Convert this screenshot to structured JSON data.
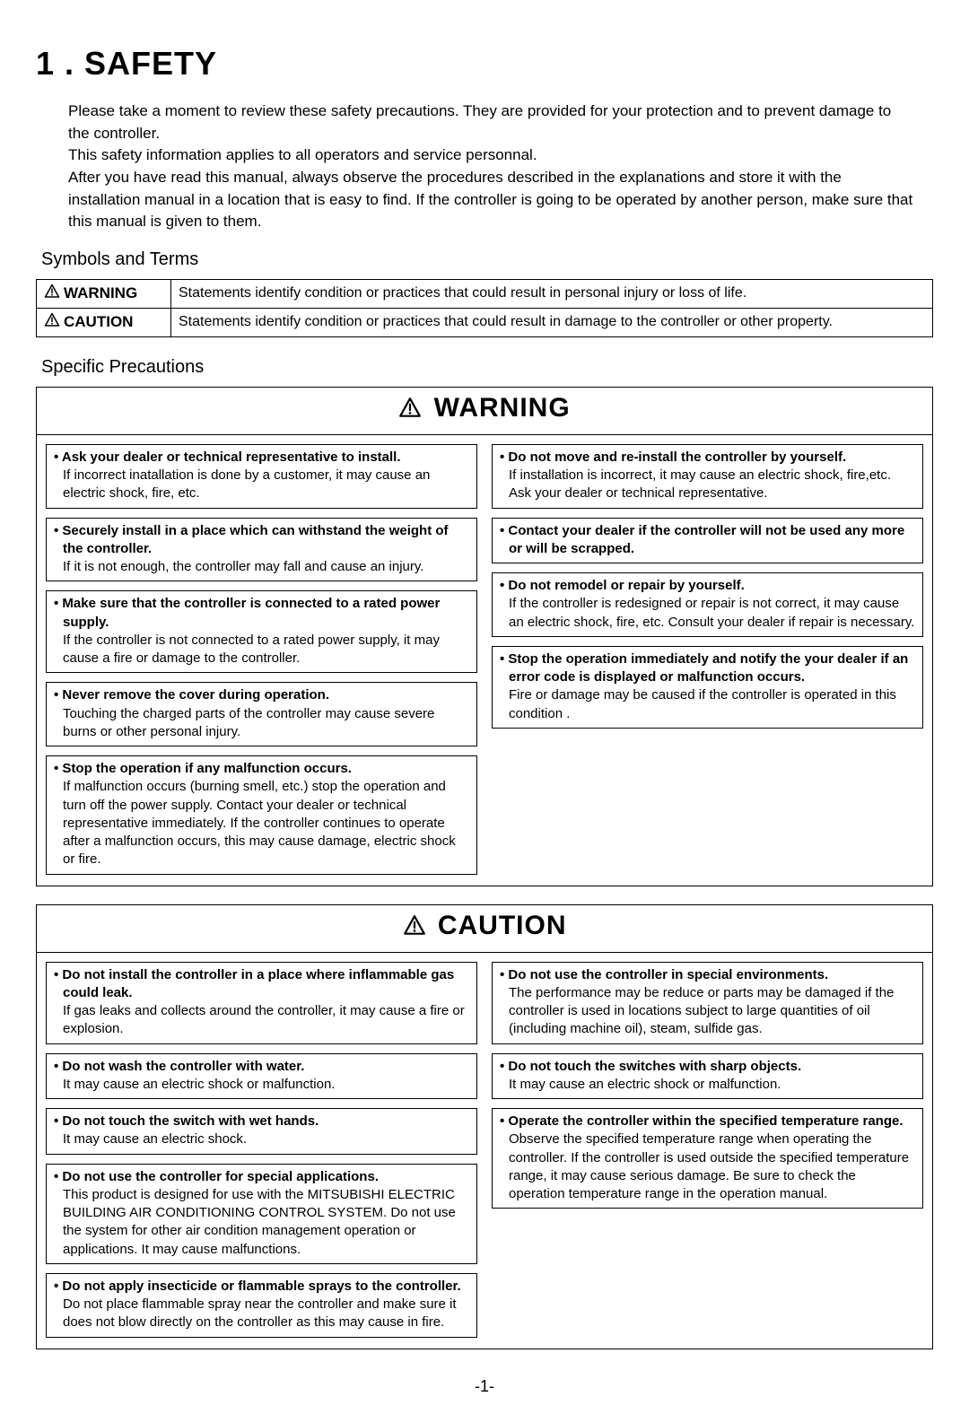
{
  "chapter": {
    "number": "1",
    "title": "SAFETY"
  },
  "intro_paragraphs": [
    "Please take a moment to review these safety precautions. They are provided for your protection and to prevent damage to the controller.",
    "This safety information applies to all operators and service personnal.",
    "After you have read this manual, always observe the procedures described in the explanations and store it with the installation manual in a location that is easy to find. If the controller is going to be operated by another person, make sure that this manual is given to them."
  ],
  "symbols_heading": "Symbols and Terms",
  "symbols_rows": [
    {
      "label": "WARNING",
      "desc": "Statements identify condition or practices that could result in personal injury or loss of life."
    },
    {
      "label": "CAUTION",
      "desc": "Statements identify condition or practices that could result in damage to the controller or other property."
    }
  ],
  "specific_heading": "Specific Precautions",
  "warning_box": {
    "header": "WARNING",
    "left": [
      {
        "title": "Ask your dealer or technical representative to install.",
        "body": "If incorrect inatallation is done by a customer, it may cause an electric shock, fire, etc."
      },
      {
        "title": "Securely install in a place which can withstand the weight of the controller.",
        "body": "If it is not enough, the controller may fall and cause an injury."
      },
      {
        "title": "Make sure that the controller is connected to a rated power supply.",
        "body": "If the controller is not connected to a rated power supply, it may cause a fire or damage to the controller."
      },
      {
        "title": "Never remove the cover during operation.",
        "body": "Touching the charged parts of the controller may cause severe burns or other personal injury."
      },
      {
        "title": "Stop the operation if any malfunction occurs.",
        "body": "If malfunction occurs (burning smell, etc.) stop the operation and turn off the power supply. Contact your dealer or technical representative immediately. If the controller continues to operate after a malfunction occurs, this may cause damage, electric shock or fire."
      }
    ],
    "right": [
      {
        "title": "Do not move and re-install the controller by yourself.",
        "body": "If installation is incorrect, it may cause an electric shock, fire,etc. Ask your dealer or technical representative."
      },
      {
        "title": "Contact your dealer if the controller will not be used any more or will be scrapped.",
        "body": ""
      },
      {
        "title": "Do not remodel or repair by yourself.",
        "body": "If the controller is redesigned or repair is not correct, it may cause an electric shock, fire, etc. Consult your dealer if repair is necessary."
      },
      {
        "title": "Stop the operation immediately and notify the your dealer if an error code is displayed or malfunction occurs.",
        "body": "Fire or damage may be caused if the controller is operated in this condition ."
      }
    ]
  },
  "caution_box": {
    "header": "CAUTION",
    "left": [
      {
        "title": "Do not install the controller in a place where inflammable gas could leak.",
        "body": "If gas leaks and collects around the controller, it may cause a fire or explosion."
      },
      {
        "title": "Do not wash the controller with water.",
        "body": "It may cause an electric shock or malfunction."
      },
      {
        "title": "Do not touch the switch with wet hands.",
        "body": "It may cause an electric shock."
      },
      {
        "title": "Do not use the controller for special applications.",
        "body": "This product is designed for use with the  MITSUBISHI ELECTRIC BUILDING AIR CONDITIONING CONTROL SYSTEM. Do not use the system for other air condition management operation or applications. It may cause malfunctions."
      },
      {
        "title": "Do not apply insecticide or flammable sprays to the controller.",
        "body": "Do not place flammable spray near the controller and make sure it does not blow directly on the controller as this may cause in fire."
      }
    ],
    "right": [
      {
        "title": "Do not use the controller in special environments.",
        "body": "The performance may be reduce or parts may be damaged if the controller is used in locations subject to large quantities of oil (including machine oil), steam, sulfide gas."
      },
      {
        "title": "Do not touch the switches with sharp objects.",
        "body": "It may cause an electric shock or malfunction."
      },
      {
        "title": "Operate the controller within the specified temperature range.",
        "body": "Observe the specified temperature range when operating the controller. If the controller is used outside the specified temperature range, it may cause serious damage. Be sure to check the operation temperature range in the operation manual."
      }
    ]
  },
  "page_number": "-1-",
  "colors": {
    "text": "#000000",
    "border": "#000000",
    "bg": "#ffffff"
  }
}
